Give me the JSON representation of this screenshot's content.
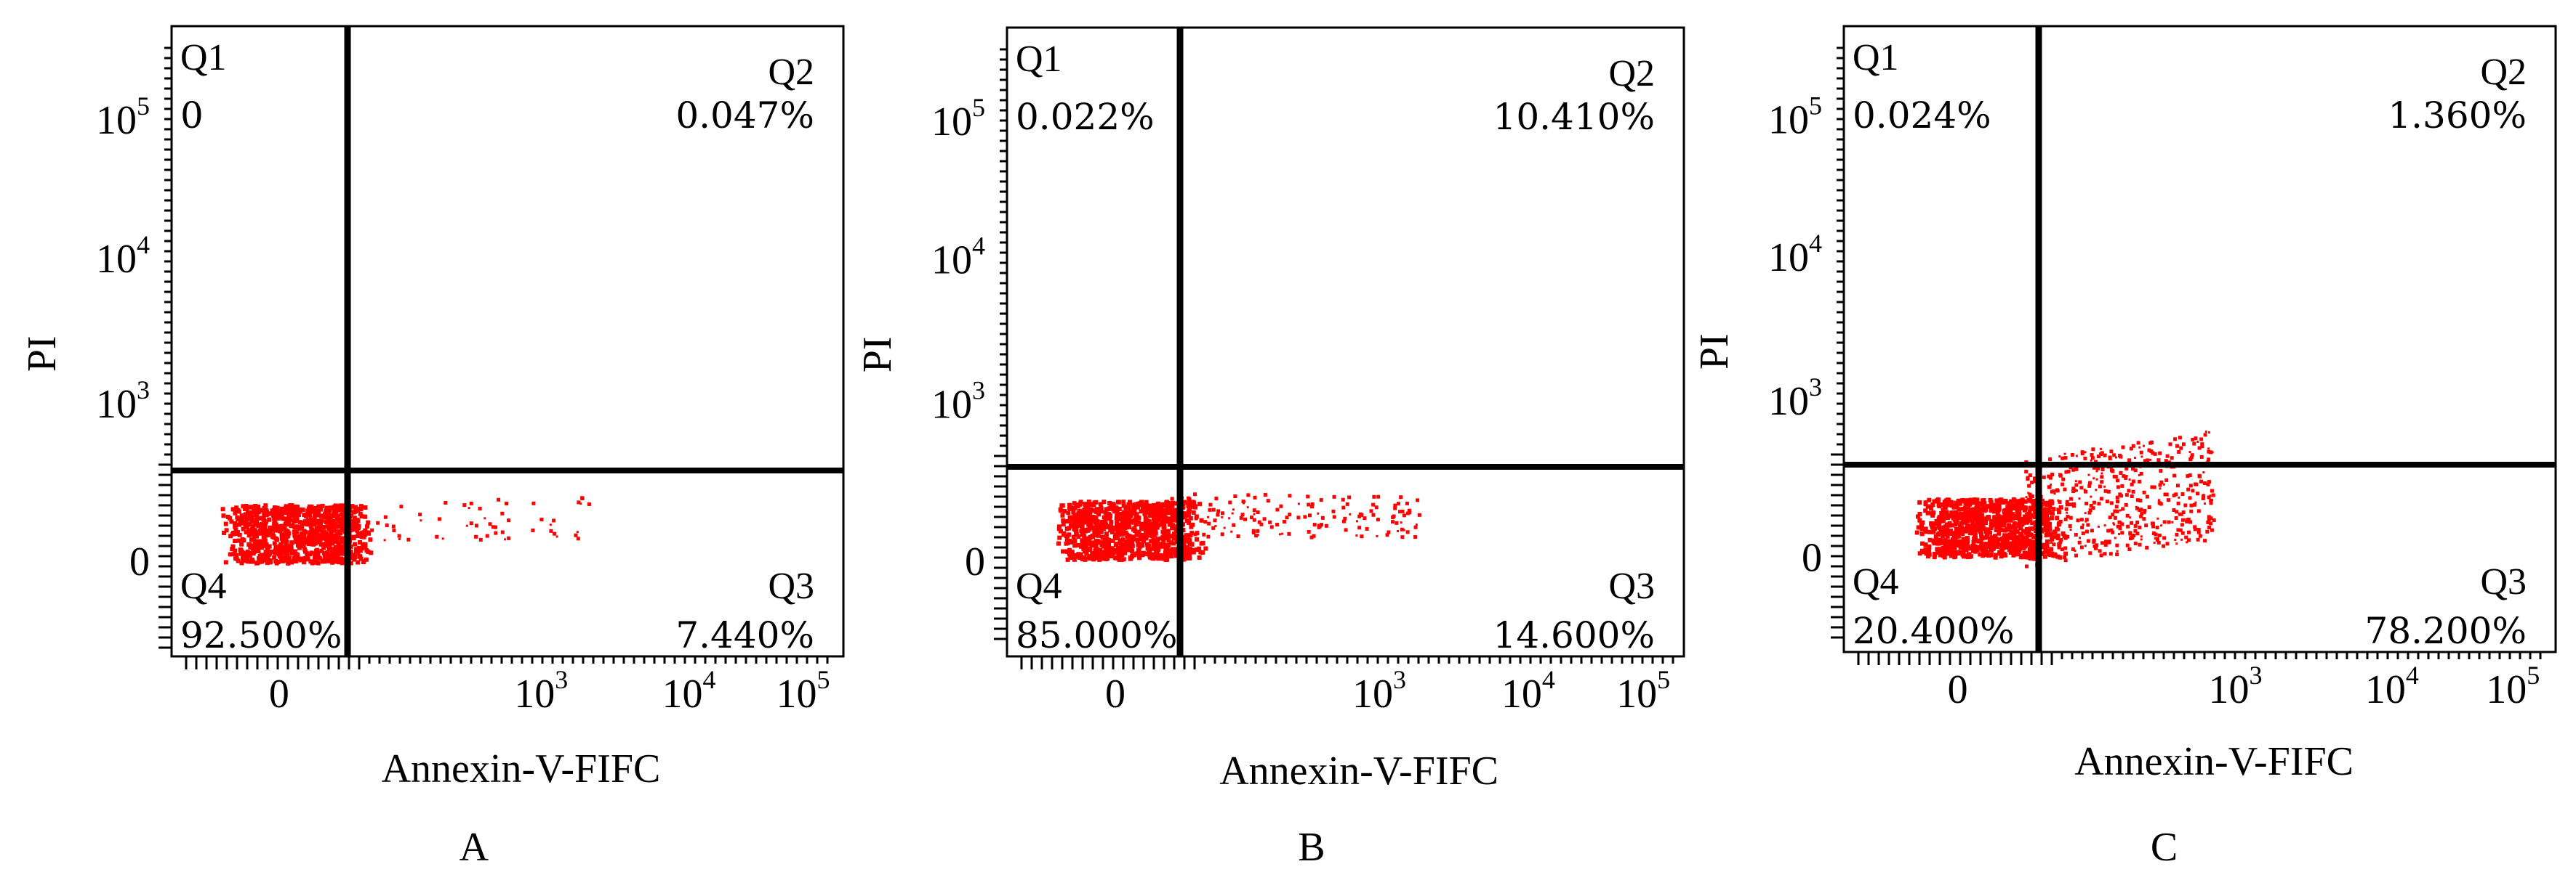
{
  "chart_data": [
    {
      "type": "scatter",
      "panel_label": "A",
      "xlabel": "Annexin-V-FIFC",
      "ylabel": "PI",
      "x_ticks": [
        "0",
        "10^3",
        "10^4",
        "10^5"
      ],
      "y_ticks": [
        "0",
        "10^3",
        "10^4",
        "10^5"
      ],
      "quadrants": [
        {
          "name": "Q1",
          "value": "0"
        },
        {
          "name": "Q2",
          "value": "0.047%"
        },
        {
          "name": "Q3",
          "value": "7.440%"
        },
        {
          "name": "Q4",
          "value": "92.500%"
        }
      ],
      "dot_color": "#ff0000"
    },
    {
      "type": "scatter",
      "panel_label": "B",
      "xlabel": "Annexin-V-FIFC",
      "ylabel": "PI",
      "x_ticks": [
        "0",
        "10^3",
        "10^4",
        "10^5"
      ],
      "y_ticks": [
        "0",
        "10^3",
        "10^4",
        "10^5"
      ],
      "quadrants": [
        {
          "name": "Q1",
          "value": "0.022%"
        },
        {
          "name": "Q2",
          "value": "10.410%"
        },
        {
          "name": "Q3",
          "value": "14.600%"
        },
        {
          "name": "Q4",
          "value": "85.000%"
        }
      ],
      "dot_color": "#ff0000"
    },
    {
      "type": "scatter",
      "panel_label": "C",
      "xlabel": "Annexin-V-FIFC",
      "ylabel": "PI",
      "x_ticks": [
        "0",
        "10^3",
        "10^4",
        "10^5"
      ],
      "y_ticks": [
        "0",
        "10^3",
        "10^4",
        "10^5"
      ],
      "quadrants": [
        {
          "name": "Q1",
          "value": "0.024%"
        },
        {
          "name": "Q2",
          "value": "1.360%"
        },
        {
          "name": "Q3",
          "value": "78.200%"
        },
        {
          "name": "Q4",
          "value": "20.400%"
        }
      ],
      "dot_color": "#ff0000"
    }
  ]
}
